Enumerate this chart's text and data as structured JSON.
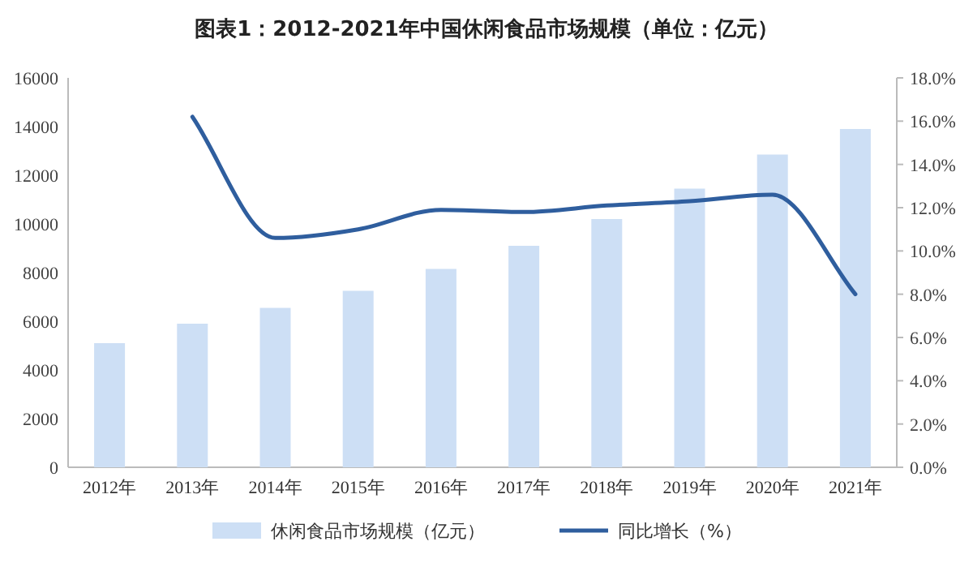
{
  "chart_data": {
    "type": "bar",
    "title": "图表1：2012-2021年中国休闲食品市场规模（单位：亿元）",
    "categories": [
      "2012年",
      "2013年",
      "2014年",
      "2015年",
      "2016年",
      "2017年",
      "2018年",
      "2019年",
      "2020年",
      "2021年"
    ],
    "series": [
      {
        "name": "休闲食品市场规模（亿元）",
        "color": "#cddff5",
        "values": [
          5100,
          5900,
          6550,
          7250,
          8150,
          9100,
          10200,
          11450,
          12850,
          13900
        ]
      },
      {
        "name": "同比增长（%）",
        "color": "#2f5e9e",
        "type": "line",
        "axis": "y2",
        "values": [
          null,
          16.2,
          10.6,
          11.0,
          11.9,
          11.8,
          12.1,
          12.3,
          12.6,
          8.0
        ]
      }
    ],
    "ylim": [
      0,
      16000
    ],
    "yticks": [
      0,
      2000,
      4000,
      6000,
      8000,
      10000,
      12000,
      14000,
      16000
    ],
    "y2lim": [
      0,
      18
    ],
    "y2ticks": [
      {
        "value": 0,
        "label": "0.0%"
      },
      {
        "value": 2,
        "label": "2.0%"
      },
      {
        "value": 4,
        "label": "4.0%"
      },
      {
        "value": 6,
        "label": "6.0%"
      },
      {
        "value": 8,
        "label": "8.0%"
      },
      {
        "value": 10,
        "label": "10.0%"
      },
      {
        "value": 12,
        "label": "12.0%"
      },
      {
        "value": 14,
        "label": "14.0%"
      },
      {
        "value": 16,
        "label": "16.0%"
      },
      {
        "value": 18,
        "label": "18.0%"
      }
    ],
    "grid": false,
    "legend": "bottom"
  }
}
